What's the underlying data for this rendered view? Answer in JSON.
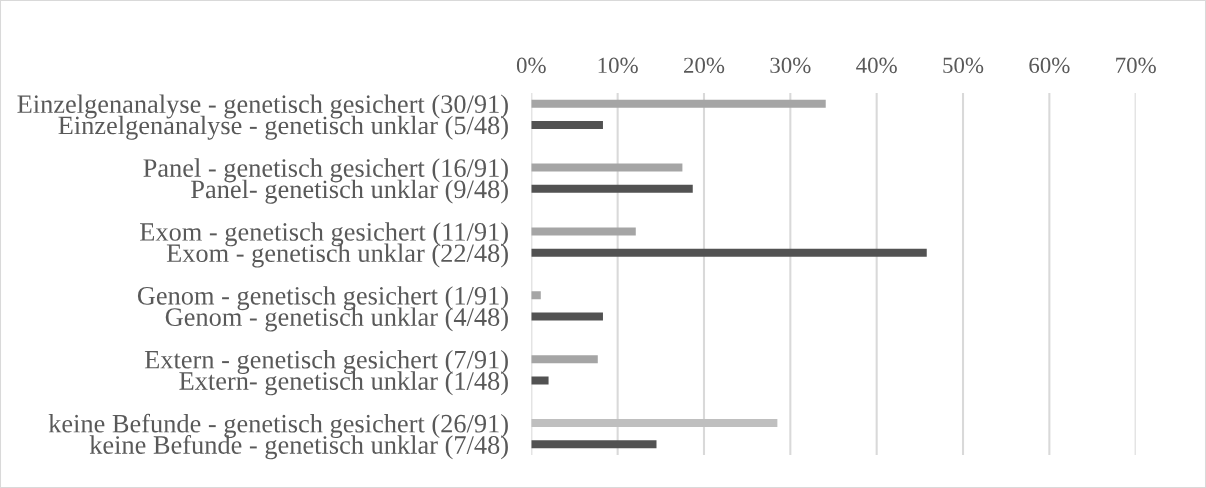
{
  "chart_data": {
    "type": "bar",
    "orientation": "horizontal",
    "categories": [
      "Einzelgenanalyse - genetisch gesichert (30/91)",
      "Einzelgenanalyse - genetisch unklar (5/48)",
      null,
      "Panel - genetisch gesichert (16/91)",
      "Panel- genetisch unklar (9/48)",
      null,
      "Exom - genetisch gesichert (11/91)",
      "Exom - genetisch unklar (22/48)",
      null,
      "Genom - genetisch gesichert (1/91)",
      "Genom - genetisch unklar (4/48)",
      null,
      "Extern - genetisch gesichert (7/91)",
      "Extern- genetisch unklar (1/48)",
      null,
      "keine Befunde - genetisch gesichert (26/91)",
      "keine Befunde - genetisch unklar (7/48)"
    ],
    "values": [
      34.1,
      8.3,
      null,
      17.5,
      18.7,
      null,
      12.1,
      45.8,
      null,
      1.1,
      8.3,
      null,
      7.7,
      2.0,
      null,
      28.5,
      14.5
    ],
    "colors": [
      "#a5a5a5",
      "#525252",
      null,
      "#a5a5a5",
      "#525252",
      null,
      "#a5a5a5",
      "#525252",
      null,
      "#a5a5a5",
      "#525252",
      null,
      "#a5a5a5",
      "#525252",
      null,
      "#bfbfbf",
      "#525252"
    ],
    "xlim": [
      0,
      70
    ],
    "xticks": [
      {
        "value": 0,
        "label": "0%"
      },
      {
        "value": 10,
        "label": "10%"
      },
      {
        "value": 20,
        "label": "20%"
      },
      {
        "value": 30,
        "label": "30%"
      },
      {
        "value": 40,
        "label": "40%"
      },
      {
        "value": 50,
        "label": "50%"
      },
      {
        "value": 60,
        "label": "60%"
      },
      {
        "value": 70,
        "label": "70%"
      }
    ],
    "grid": "x"
  }
}
